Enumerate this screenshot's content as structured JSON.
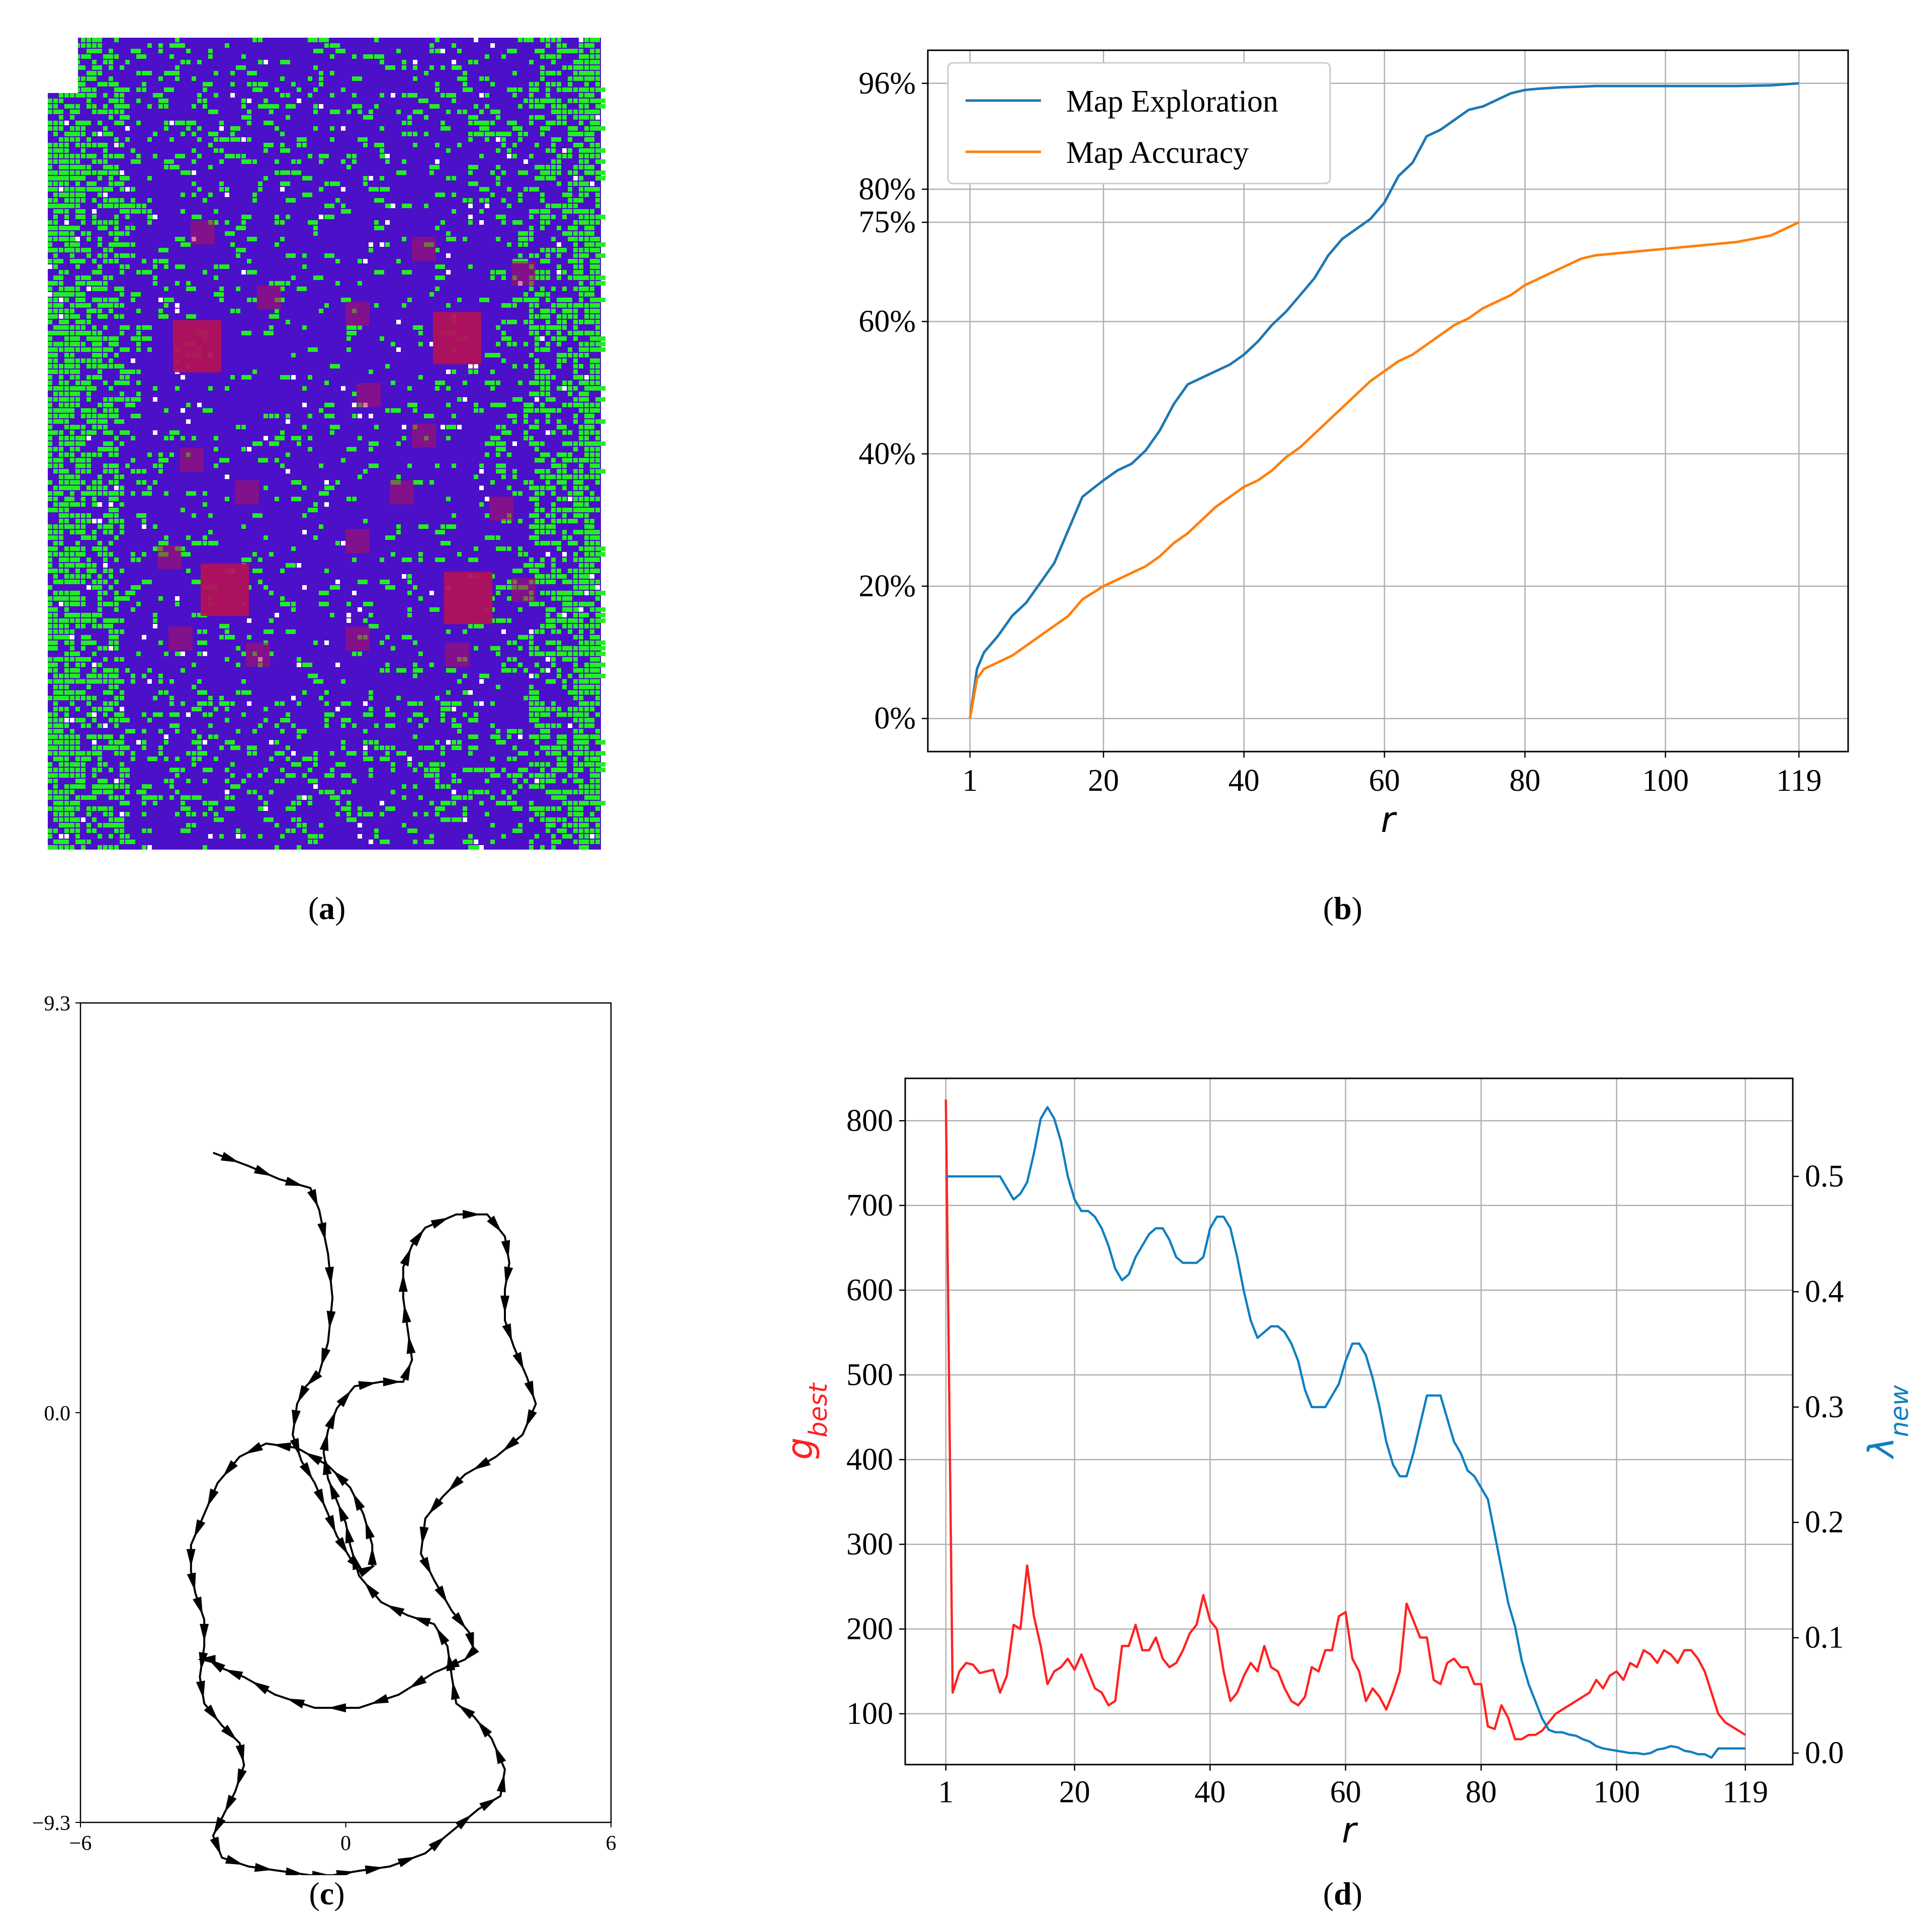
{
  "captions": {
    "a": "a",
    "b": "b",
    "c": "c",
    "d": "d"
  },
  "colors": {
    "exploration": "#1f77b4",
    "accuracy": "#ff7f0e",
    "gbest": "#ff2222",
    "lambda": "#0f7fc0",
    "map_background": "#4b10c8",
    "map_obstacle": "#b0125a",
    "map_free": "#22ee22",
    "map_unknown": "#ffffff"
  },
  "chart_data": [
    {
      "id": "a",
      "type": "heatmap",
      "title": "",
      "note": "occupancy grid map: blue explored area, green cells, red obstacle blocks",
      "obstacles_large": [
        [
          0.27,
          0.38
        ],
        [
          0.74,
          0.37
        ],
        [
          0.32,
          0.68
        ],
        [
          0.76,
          0.69
        ]
      ],
      "obstacles_small": [
        [
          0.28,
          0.24
        ],
        [
          0.68,
          0.26
        ],
        [
          0.4,
          0.32
        ],
        [
          0.56,
          0.34
        ],
        [
          0.86,
          0.29
        ],
        [
          0.58,
          0.44
        ],
        [
          0.68,
          0.49
        ],
        [
          0.26,
          0.52
        ],
        [
          0.36,
          0.56
        ],
        [
          0.64,
          0.56
        ],
        [
          0.82,
          0.58
        ],
        [
          0.22,
          0.64
        ],
        [
          0.56,
          0.62
        ],
        [
          0.86,
          0.68
        ],
        [
          0.24,
          0.74
        ],
        [
          0.38,
          0.76
        ],
        [
          0.56,
          0.74
        ],
        [
          0.74,
          0.76
        ]
      ]
    },
    {
      "id": "b",
      "type": "line",
      "xlabel": "r",
      "ylabel": "",
      "xlim": [
        -5,
        126
      ],
      "ylim": [
        -5,
        101
      ],
      "xticks": [
        1,
        20,
        40,
        60,
        80,
        100,
        119
      ],
      "yticks": [
        0,
        20,
        40,
        60,
        75,
        80,
        96
      ],
      "ytick_labels": [
        "0%",
        "20%",
        "40%",
        "60%",
        "75%",
        "80%",
        "96%"
      ],
      "grid": true,
      "legend": "top-left",
      "series": [
        {
          "name": "Map Exploration",
          "x": [
            1,
            2,
            3,
            5,
            7,
            9,
            11,
            13,
            15,
            17,
            20,
            22,
            24,
            26,
            28,
            30,
            32,
            34,
            36,
            38,
            40,
            42,
            44,
            46,
            48,
            50,
            52,
            54,
            56,
            58,
            60,
            62,
            64,
            66,
            68,
            70,
            72,
            74,
            76,
            78,
            80,
            82,
            85,
            88,
            90,
            95,
            100,
            105,
            110,
            115,
            119
          ],
          "y": [
            0,
            7.5,
            10,
            12.5,
            15.5,
            17.5,
            20.5,
            23.5,
            28.5,
            33.5,
            36,
            37.5,
            38.5,
            40.5,
            43.5,
            47.5,
            50.5,
            51.5,
            52.5,
            53.5,
            55,
            57,
            59.5,
            61.5,
            64,
            66.5,
            70,
            72.5,
            74,
            75.5,
            78,
            82,
            84,
            88,
            89,
            90.5,
            92,
            92.5,
            93.5,
            94.5,
            95,
            95.2,
            95.4,
            95.5,
            95.6,
            95.6,
            95.6,
            95.6,
            95.6,
            95.7,
            96
          ]
        },
        {
          "name": "Map Accuracy",
          "x": [
            1,
            2,
            3,
            5,
            7,
            9,
            11,
            13,
            15,
            17,
            20,
            22,
            24,
            26,
            28,
            30,
            32,
            34,
            36,
            38,
            40,
            42,
            44,
            46,
            48,
            50,
            52,
            54,
            56,
            58,
            60,
            62,
            64,
            66,
            68,
            70,
            72,
            74,
            76,
            78,
            80,
            82,
            85,
            88,
            90,
            95,
            100,
            105,
            110,
            115,
            119
          ],
          "y": [
            0,
            6,
            7.5,
            8.5,
            9.5,
            11,
            12.5,
            14,
            15.5,
            18,
            20,
            21,
            22,
            23,
            24.5,
            26.5,
            28,
            30,
            32,
            33.5,
            35,
            36,
            37.5,
            39.5,
            41,
            43,
            45,
            47,
            49,
            51,
            52.5,
            54,
            55,
            56.5,
            58,
            59.5,
            60.5,
            62,
            63,
            64,
            65.5,
            66.5,
            68,
            69.5,
            70,
            70.5,
            71,
            71.5,
            72,
            73,
            75
          ]
        }
      ]
    },
    {
      "id": "c",
      "type": "line",
      "title": "",
      "xlabel": "",
      "ylabel": "",
      "xlim": [
        -6,
        6
      ],
      "ylim": [
        -9.3,
        9.3
      ],
      "xticks": [
        -6,
        0,
        6
      ],
      "xtick_labels": [
        "−6",
        "0",
        "6"
      ],
      "yticks": [
        -9.3,
        0.0,
        9.3
      ],
      "ytick_labels": [
        "−9.3",
        "0.0",
        "9.3"
      ],
      "grid": false,
      "series": [
        {
          "x": [
            -3.0,
            -2.2,
            -1.5,
            -0.8,
            -0.6,
            -0.4,
            -0.3,
            -0.4,
            -0.6,
            -0.9,
            -1.1,
            -1.2,
            -1.0,
            -0.7,
            -0.4,
            -0.2,
            0.1,
            0.4,
            0.6,
            0.6,
            0.4,
            0.1,
            -0.4,
            -1.1,
            -1.8,
            -2.4,
            -2.9,
            -3.2,
            -3.5,
            -3.5,
            -3.4,
            -3.2,
            -3.2,
            -3.3,
            -3.2,
            -2.8,
            -2.4,
            -2.3,
            -2.5,
            -2.8,
            -3.0,
            -2.8,
            -2.2,
            -1.5,
            -0.8,
            -0.3,
            0.3,
            1.0,
            1.8,
            2.4,
            3.0,
            3.5,
            3.6,
            3.3,
            2.9,
            2.5,
            2.4,
            2.3,
            2.0,
            1.4,
            0.8,
            0.3,
            0.1,
            0.0,
            -0.2,
            -0.4,
            -0.5,
            -0.4,
            -0.2,
            0.2,
            0.8,
            1.3,
            1.5,
            1.4,
            1.3,
            1.3,
            1.5,
            1.8,
            2.5,
            3.2,
            3.6,
            3.7,
            3.6,
            3.6,
            3.8,
            4.1,
            4.3,
            4.0,
            3.4,
            2.7,
            2.2,
            1.8,
            1.7,
            2.0,
            2.4,
            2.8,
            2.9,
            2.7,
            2.0,
            1.2,
            0.3,
            -0.7,
            -1.6,
            -2.3,
            -2.8,
            -3.1,
            -3.2
          ],
          "y": [
            5.9,
            5.6,
            5.3,
            5.1,
            4.6,
            3.6,
            2.6,
            1.6,
            0.9,
            0.6,
            0.2,
            -0.5,
            -1.1,
            -1.6,
            -2.3,
            -2.8,
            -3.3,
            -3.6,
            -3.5,
            -3.0,
            -2.3,
            -1.7,
            -1.2,
            -0.8,
            -0.7,
            -1.0,
            -1.6,
            -2.3,
            -3.0,
            -3.6,
            -4.1,
            -4.7,
            -5.3,
            -6.0,
            -6.6,
            -7.1,
            -7.5,
            -8.0,
            -8.6,
            -9.2,
            -9.6,
            -10.1,
            -10.3,
            -10.4,
            -10.5,
            -10.5,
            -10.4,
            -10.3,
            -10.0,
            -9.5,
            -9.0,
            -8.7,
            -8.1,
            -7.4,
            -6.9,
            -6.6,
            -6.0,
            -5.3,
            -4.8,
            -4.6,
            -4.3,
            -3.7,
            -3.0,
            -2.5,
            -2.0,
            -1.5,
            -0.9,
            -0.4,
            0.1,
            0.6,
            0.7,
            0.7,
            1.2,
            1.9,
            2.6,
            3.3,
            3.8,
            4.2,
            4.5,
            4.5,
            4.0,
            3.4,
            2.8,
            2.1,
            1.5,
            0.8,
            0.2,
            -0.5,
            -1.0,
            -1.4,
            -1.9,
            -2.4,
            -3.2,
            -3.8,
            -4.5,
            -5.0,
            -5.4,
            -5.6,
            -5.9,
            -6.4,
            -6.7,
            -6.7,
            -6.4,
            -6.0,
            -5.8,
            -5.6,
            -5.6
          ]
        }
      ]
    },
    {
      "id": "d",
      "type": "line",
      "xlabel": "r",
      "ylabel": "g_best",
      "y2label": "λ_new",
      "xlim": [
        -5,
        126
      ],
      "ylim": [
        40,
        850
      ],
      "y2lim": [
        -0.01,
        0.585
      ],
      "xticks": [
        1,
        20,
        40,
        60,
        80,
        100,
        119
      ],
      "yticks": [
        100,
        200,
        300,
        400,
        500,
        600,
        700,
        800
      ],
      "y2ticks": [
        0.0,
        0.1,
        0.2,
        0.3,
        0.4,
        0.5
      ],
      "y2tick_labels": [
        "0.0",
        "0.1",
        "0.2",
        "0.3",
        "0.4",
        "0.5"
      ],
      "grid": true,
      "series": [
        {
          "name": "g_best",
          "axis": "left",
          "x": [
            1,
            2,
            3,
            4,
            5,
            6,
            7,
            8,
            9,
            10,
            11,
            12,
            13,
            14,
            15,
            16,
            17,
            18,
            19,
            20,
            21,
            22,
            23,
            24,
            25,
            26,
            27,
            28,
            29,
            30,
            31,
            32,
            33,
            34,
            35,
            36,
            37,
            38,
            39,
            40,
            41,
            42,
            43,
            44,
            45,
            46,
            47,
            48,
            49,
            50,
            51,
            52,
            53,
            54,
            55,
            56,
            57,
            58,
            59,
            60,
            61,
            62,
            63,
            64,
            65,
            66,
            67,
            68,
            69,
            70,
            71,
            72,
            73,
            74,
            75,
            76,
            77,
            78,
            79,
            80,
            81,
            82,
            83,
            84,
            85,
            86,
            87,
            88,
            89,
            90,
            91,
            92,
            93,
            94,
            95,
            96,
            97,
            98,
            99,
            100,
            101,
            102,
            103,
            104,
            105,
            106,
            107,
            108,
            109,
            110,
            111,
            112,
            113,
            114,
            115,
            116,
            117,
            118,
            119
          ],
          "y": [
            825,
            125,
            150,
            160,
            158,
            148,
            150,
            152,
            125,
            145,
            205,
            200,
            275,
            215,
            180,
            135,
            150,
            155,
            165,
            152,
            170,
            150,
            130,
            125,
            110,
            115,
            180,
            180,
            205,
            175,
            175,
            190,
            165,
            155,
            160,
            175,
            195,
            205,
            240,
            210,
            200,
            150,
            115,
            125,
            145,
            160,
            150,
            180,
            155,
            150,
            130,
            115,
            110,
            120,
            155,
            150,
            175,
            175,
            215,
            220,
            165,
            150,
            115,
            130,
            120,
            105,
            125,
            150,
            230,
            210,
            190,
            190,
            140,
            135,
            160,
            165,
            155,
            155,
            135,
            135,
            85,
            82,
            110,
            95,
            70,
            70,
            75,
            75,
            80,
            90,
            100,
            105,
            110,
            115,
            120,
            125,
            140,
            130,
            145,
            150,
            140,
            160,
            155,
            175,
            170,
            160,
            175,
            170,
            160,
            175,
            175,
            165,
            150,
            125,
            100,
            90,
            85,
            80,
            75
          ]
        },
        {
          "name": "λ_new",
          "axis": "right",
          "x": [
            1,
            3,
            5,
            7,
            8,
            9,
            10,
            11,
            12,
            13,
            14,
            15,
            16,
            17,
            18,
            19,
            20,
            21,
            22,
            23,
            24,
            25,
            26,
            27,
            28,
            29,
            30,
            31,
            32,
            33,
            34,
            35,
            36,
            37,
            38,
            39,
            40,
            41,
            42,
            43,
            44,
            45,
            46,
            47,
            48,
            49,
            50,
            51,
            52,
            53,
            54,
            55,
            56,
            57,
            58,
            59,
            60,
            61,
            62,
            63,
            64,
            65,
            66,
            67,
            68,
            69,
            70,
            71,
            72,
            73,
            74,
            75,
            76,
            77,
            78,
            79,
            80,
            81,
            82,
            83,
            84,
            85,
            86,
            87,
            88,
            89,
            90,
            91,
            92,
            93,
            94,
            95,
            96,
            97,
            98,
            99,
            100,
            101,
            102,
            103,
            104,
            105,
            106,
            107,
            108,
            109,
            110,
            111,
            112,
            113,
            114,
            115,
            116,
            117,
            118,
            119
          ],
          "y": [
            0.5,
            0.5,
            0.5,
            0.5,
            0.5,
            0.5,
            0.49,
            0.48,
            0.485,
            0.495,
            0.52,
            0.55,
            0.56,
            0.55,
            0.53,
            0.5,
            0.48,
            0.47,
            0.47,
            0.465,
            0.455,
            0.44,
            0.42,
            0.41,
            0.415,
            0.43,
            0.44,
            0.45,
            0.455,
            0.455,
            0.445,
            0.43,
            0.425,
            0.425,
            0.425,
            0.43,
            0.455,
            0.465,
            0.465,
            0.455,
            0.43,
            0.4,
            0.375,
            0.36,
            0.365,
            0.37,
            0.37,
            0.365,
            0.355,
            0.34,
            0.315,
            0.3,
            0.3,
            0.3,
            0.31,
            0.32,
            0.34,
            0.355,
            0.355,
            0.345,
            0.325,
            0.3,
            0.27,
            0.25,
            0.24,
            0.24,
            0.26,
            0.285,
            0.31,
            0.31,
            0.31,
            0.29,
            0.27,
            0.26,
            0.245,
            0.24,
            0.23,
            0.22,
            0.19,
            0.16,
            0.13,
            0.11,
            0.08,
            0.06,
            0.045,
            0.03,
            0.02,
            0.018,
            0.018,
            0.016,
            0.015,
            0.012,
            0.01,
            0.006,
            0.004,
            0.003,
            0.002,
            0.001,
            0.0,
            0.0,
            -0.001,
            0.0,
            0.003,
            0.004,
            0.006,
            0.005,
            0.002,
            0.001,
            -0.001,
            -0.001,
            -0.004,
            0.004,
            0.004,
            0.004,
            0.004,
            0.004
          ]
        }
      ]
    }
  ]
}
